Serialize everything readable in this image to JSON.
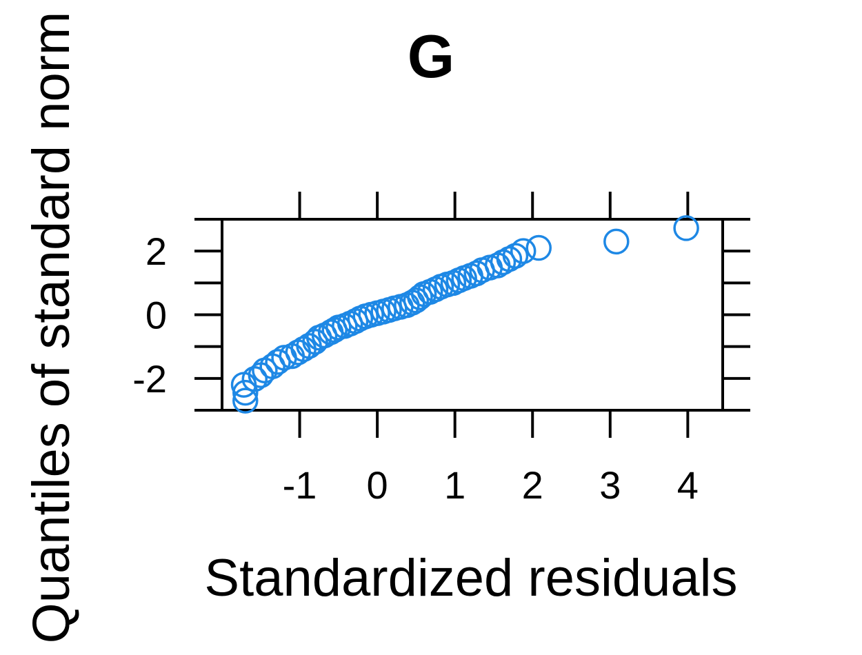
{
  "chart_data": {
    "type": "scatter",
    "title": "G",
    "xlabel": "Standardized residuals",
    "ylabel": "Quantiles of standard norm",
    "xlim": [
      -2.0,
      4.45
    ],
    "ylim": [
      -3.0,
      3.0
    ],
    "x_ticks": [
      -1,
      0,
      1,
      2,
      3,
      4
    ],
    "x_tick_labels": [
      "-1",
      "0",
      "1",
      "2",
      "3",
      "4"
    ],
    "y_ticks": [
      -3,
      -2,
      -1,
      0,
      1,
      2,
      3
    ],
    "y_tick_labels": [
      "",
      "-2",
      "",
      "0",
      "",
      "2",
      ""
    ],
    "grid": false,
    "marker_color": "#1E88E5",
    "series": [
      {
        "points": [
          [
            -1.7,
            -2.7
          ],
          [
            -1.7,
            -2.45
          ],
          [
            -1.72,
            -2.2
          ],
          [
            -1.58,
            -2.02
          ],
          [
            -1.5,
            -1.9
          ],
          [
            -1.45,
            -1.75
          ],
          [
            -1.35,
            -1.62
          ],
          [
            -1.28,
            -1.48
          ],
          [
            -1.2,
            -1.35
          ],
          [
            -1.1,
            -1.3
          ],
          [
            -1.02,
            -1.18
          ],
          [
            -0.95,
            -1.08
          ],
          [
            -0.88,
            -0.98
          ],
          [
            -0.8,
            -0.85
          ],
          [
            -0.75,
            -0.72
          ],
          [
            -0.68,
            -0.65
          ],
          [
            -0.6,
            -0.55
          ],
          [
            -0.55,
            -0.48
          ],
          [
            -0.5,
            -0.4
          ],
          [
            -0.42,
            -0.35
          ],
          [
            -0.35,
            -0.28
          ],
          [
            -0.28,
            -0.2
          ],
          [
            -0.22,
            -0.12
          ],
          [
            -0.15,
            -0.05
          ],
          [
            -0.08,
            0.0
          ],
          [
            0.0,
            0.05
          ],
          [
            0.08,
            0.1
          ],
          [
            0.15,
            0.15
          ],
          [
            0.22,
            0.2
          ],
          [
            0.3,
            0.25
          ],
          [
            0.38,
            0.3
          ],
          [
            0.45,
            0.38
          ],
          [
            0.5,
            0.45
          ],
          [
            0.55,
            0.55
          ],
          [
            0.6,
            0.65
          ],
          [
            0.68,
            0.72
          ],
          [
            0.75,
            0.8
          ],
          [
            0.82,
            0.88
          ],
          [
            0.9,
            0.95
          ],
          [
            0.98,
            1.0
          ],
          [
            1.05,
            1.08
          ],
          [
            1.12,
            1.15
          ],
          [
            1.2,
            1.22
          ],
          [
            1.28,
            1.3
          ],
          [
            1.35,
            1.4
          ],
          [
            1.45,
            1.48
          ],
          [
            1.55,
            1.55
          ],
          [
            1.62,
            1.65
          ],
          [
            1.7,
            1.75
          ],
          [
            1.78,
            1.85
          ],
          [
            1.88,
            2.0
          ],
          [
            2.08,
            2.1
          ],
          [
            3.08,
            2.3
          ],
          [
            3.98,
            2.72
          ]
        ]
      }
    ]
  }
}
